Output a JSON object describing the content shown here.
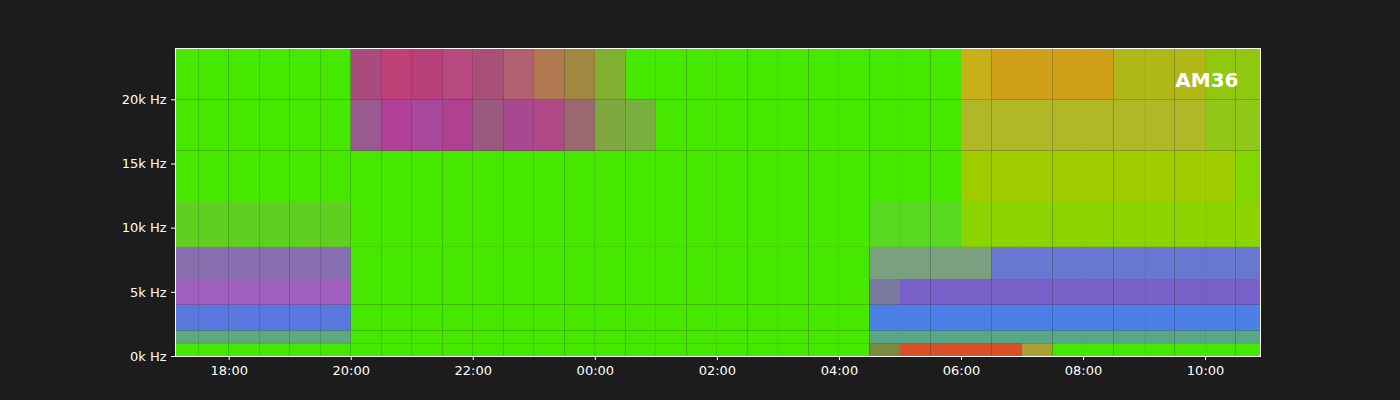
{
  "chart_data": {
    "type": "heatmap",
    "annotations": [
      {
        "text": "AM36"
      }
    ],
    "xlim": [
      17.12,
      34.9
    ],
    "xticks": [
      {
        "value": 18,
        "label": "18:00"
      },
      {
        "value": 20,
        "label": "20:00"
      },
      {
        "value": 22,
        "label": "22:00"
      },
      {
        "value": 24,
        "label": "00:00"
      },
      {
        "value": 26,
        "label": "02:00"
      },
      {
        "value": 28,
        "label": "04:00"
      },
      {
        "value": 30,
        "label": "06:00"
      },
      {
        "value": 32,
        "label": "08:00"
      },
      {
        "value": 34,
        "label": "10:00"
      }
    ],
    "ylim": [
      0,
      24000
    ],
    "yticks": [
      {
        "value": 0,
        "label": "0k Hz"
      },
      {
        "value": 5000,
        "label": "5k Hz"
      },
      {
        "value": 10000,
        "label": "10k Hz"
      },
      {
        "value": 15000,
        "label": "15k Hz"
      },
      {
        "value": 20000,
        "label": "20k Hz"
      }
    ],
    "time_edges": [
      17.12,
      17.5,
      18,
      18.5,
      19,
      19.5,
      20,
      20.5,
      21,
      21.5,
      22,
      22.5,
      23,
      23.5,
      24,
      24.5,
      25,
      25.5,
      26,
      26.5,
      27,
      27.5,
      28,
      28.5,
      29,
      29.5,
      30,
      30.5,
      31,
      31.5,
      32,
      32.5,
      33,
      33.5,
      34,
      34.5,
      34.9
    ],
    "freq_edges": [
      0,
      1000,
      2000,
      4000,
      6000,
      8500,
      12000,
      16000,
      20000,
      24000
    ],
    "cells": [
      [
        "#46e800",
        "#46e800",
        "#46e800",
        "#46e800",
        "#46e800",
        "#46e800",
        "#46e800",
        "#46e800",
        "#46e800",
        "#46e800",
        "#46e800",
        "#46e800",
        "#46e800",
        "#46e800",
        "#46e800",
        "#46e800",
        "#46e800",
        "#46e800",
        "#46e800",
        "#46e800",
        "#46e800",
        "#46e800",
        "#46e800",
        "#7a8a40",
        "#d8502a",
        "#d8502a",
        "#d8502a",
        "#d8502a",
        "#a8a030",
        "#46e800",
        "#46e800",
        "#46e800",
        "#46e800",
        "#46e800",
        "#46e800",
        "#46e800"
      ],
      [
        "#60a880",
        "#60a880",
        "#60a880",
        "#60a880",
        "#60a880",
        "#60a880",
        "#46e800",
        "#46e800",
        "#46e800",
        "#46e800",
        "#46e800",
        "#46e800",
        "#46e800",
        "#46e800",
        "#46e800",
        "#46e800",
        "#46e800",
        "#46e800",
        "#46e800",
        "#46e800",
        "#46e800",
        "#46e800",
        "#46e800",
        "#58a888",
        "#58a888",
        "#58a888",
        "#58a888",
        "#58a888",
        "#58a888",
        "#58a888",
        "#58a888",
        "#58a888",
        "#58a888",
        "#58a888",
        "#58a888",
        "#58a888"
      ],
      [
        "#5878e0",
        "#5878e0",
        "#5878e0",
        "#5878e0",
        "#5878e0",
        "#5878e0",
        "#46e800",
        "#46e800",
        "#46e800",
        "#46e800",
        "#46e800",
        "#46e800",
        "#46e800",
        "#46e800",
        "#46e800",
        "#46e800",
        "#46e800",
        "#46e800",
        "#46e800",
        "#46e800",
        "#46e800",
        "#46e800",
        "#46e800",
        "#4c80e8",
        "#4c80e8",
        "#4c80e8",
        "#4c80e8",
        "#4c80e8",
        "#4c80e8",
        "#4c80e8",
        "#4c80e8",
        "#4c80e8",
        "#4c80e8",
        "#4c80e8",
        "#4c80e8",
        "#4c80e8"
      ],
      [
        "#a060c0",
        "#a060c0",
        "#a060c0",
        "#a060c0",
        "#a060c0",
        "#a060c0",
        "#46e800",
        "#46e800",
        "#46e800",
        "#46e800",
        "#46e800",
        "#46e800",
        "#46e800",
        "#46e800",
        "#46e800",
        "#46e800",
        "#46e800",
        "#46e800",
        "#46e800",
        "#46e800",
        "#46e800",
        "#46e800",
        "#46e800",
        "#7a7aa0",
        "#7860c8",
        "#7860c8",
        "#7860c8",
        "#7860c8",
        "#7860c8",
        "#7860c8",
        "#7860c8",
        "#7860c8",
        "#7860c8",
        "#7860c8",
        "#7860c8",
        "#7860c8"
      ],
      [
        "#8870b0",
        "#8870b0",
        "#8870b0",
        "#8870b0",
        "#8870b0",
        "#8870b0",
        "#46e800",
        "#46e800",
        "#46e800",
        "#46e800",
        "#46e800",
        "#46e800",
        "#46e800",
        "#46e800",
        "#46e800",
        "#46e800",
        "#46e800",
        "#46e800",
        "#46e800",
        "#46e800",
        "#46e800",
        "#46e800",
        "#46e800",
        "#7aa080",
        "#7aa080",
        "#7aa080",
        "#7aa080",
        "#6878d0",
        "#6878d0",
        "#6878d0",
        "#6878d0",
        "#6878d0",
        "#6878d0",
        "#6878d0",
        "#6878d0",
        "#6878d0"
      ],
      [
        "#60d020",
        "#60d020",
        "#60d020",
        "#60d020",
        "#60d020",
        "#60d020",
        "#46e800",
        "#46e800",
        "#46e800",
        "#46e800",
        "#46e800",
        "#46e800",
        "#46e800",
        "#46e800",
        "#46e800",
        "#46e800",
        "#46e800",
        "#46e800",
        "#46e800",
        "#46e800",
        "#46e800",
        "#46e800",
        "#46e800",
        "#58d820",
        "#58d820",
        "#58d820",
        "#8cd400",
        "#8cd400",
        "#8cd400",
        "#8cd400",
        "#8cd400",
        "#8cd400",
        "#8cd400",
        "#8cd400",
        "#8cd400",
        "#8cd400"
      ],
      [
        "#46e800",
        "#46e800",
        "#46e800",
        "#46e800",
        "#46e800",
        "#46e800",
        "#46e800",
        "#46e800",
        "#46e800",
        "#46e800",
        "#46e800",
        "#46e800",
        "#46e800",
        "#46e800",
        "#46e800",
        "#46e800",
        "#46e800",
        "#46e800",
        "#46e800",
        "#46e800",
        "#46e800",
        "#46e800",
        "#46e800",
        "#46e800",
        "#46e800",
        "#46e800",
        "#a0cc00",
        "#a0cc00",
        "#a0cc00",
        "#a0cc00",
        "#a0cc00",
        "#a0cc00",
        "#a0cc00",
        "#a0cc00",
        "#a0cc00",
        "#80d800"
      ],
      [
        "#46e800",
        "#46e800",
        "#46e800",
        "#46e800",
        "#46e800",
        "#46e800",
        "#9a5a90",
        "#b04098",
        "#a8489a",
        "#b04090",
        "#9a5a80",
        "#a84890",
        "#b04888",
        "#9a6a70",
        "#80a840",
        "#78b040",
        "#46e800",
        "#46e800",
        "#46e800",
        "#46e800",
        "#46e800",
        "#46e800",
        "#46e800",
        "#46e800",
        "#46e800",
        "#46e800",
        "#b0b828",
        "#b0b828",
        "#b0b828",
        "#b0b828",
        "#b0b828",
        "#b0b828",
        "#b0b828",
        "#b0b828",
        "#90c818",
        "#90c818"
      ],
      [
        "#46e800",
        "#46e800",
        "#46e800",
        "#46e800",
        "#46e800",
        "#46e800",
        "#a84c80",
        "#c04078",
        "#b8407a",
        "#b84880",
        "#a85078",
        "#b06070",
        "#b07850",
        "#a08840",
        "#80b030",
        "#46e800",
        "#46e800",
        "#46e800",
        "#46e800",
        "#46e800",
        "#46e800",
        "#46e800",
        "#46e800",
        "#46e800",
        "#46e800",
        "#46e800",
        "#c8b018",
        "#d0a018",
        "#d0a018",
        "#d0a018",
        "#d0a018",
        "#b0b818",
        "#b0b818",
        "#b0b818",
        "#90c810",
        "#90c810"
      ]
    ]
  }
}
